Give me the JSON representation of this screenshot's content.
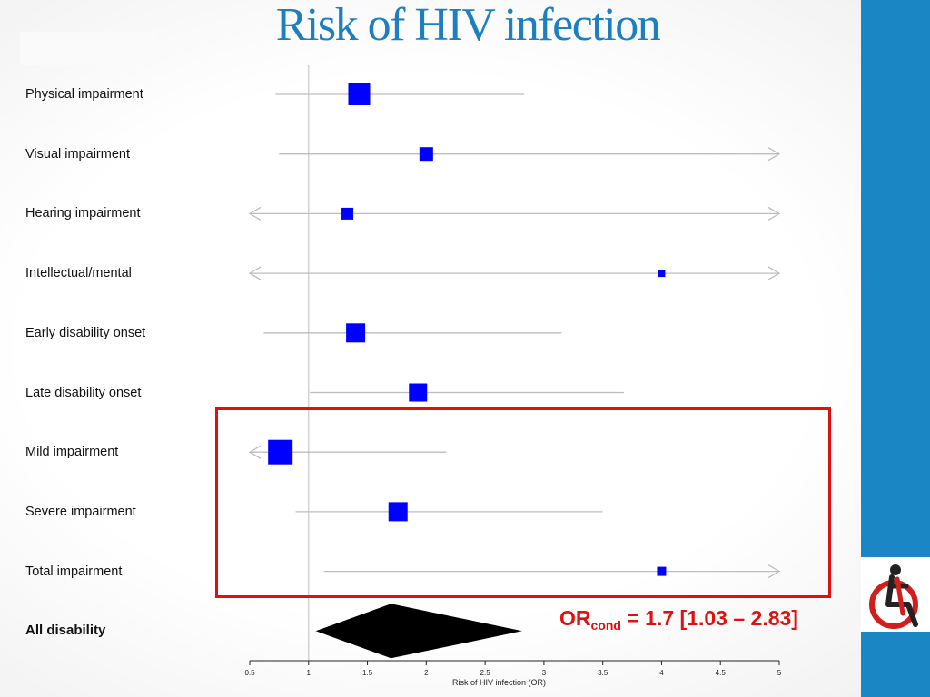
{
  "title": "Risk of HIV infection",
  "annotation": {
    "prefix": "OR",
    "subscript": "cond",
    "text": " = 1.7 [1.03 – 2.83]"
  },
  "logo": {
    "icon": "wheelchair-icon"
  },
  "colors": {
    "title": "#1e7fc0",
    "marker": "#0000ff",
    "highlight": "#e01010",
    "side_band": "#1a86c4",
    "ci_line": "#bdbdbd"
  },
  "chart_data": {
    "type": "forest",
    "title": "Risk of HIV infection",
    "xlabel": "Risk of HIV infection (OR)",
    "xlim": [
      0.5,
      5
    ],
    "x_ticks": [
      "0.5",
      "1",
      "1.5",
      "2",
      "2.5",
      "3",
      "3.5",
      "4",
      "4.5",
      "5"
    ],
    "reference_line": 1,
    "rows": [
      {
        "label": "Physical impairment",
        "or": 1.43,
        "lower": 0.72,
        "upper": 2.83
      },
      {
        "label": "Visual impairment",
        "or": 2.0,
        "lower": 0.75,
        "upper": 5,
        "upper_truncated": true
      },
      {
        "label": "Hearing impairment",
        "or": 1.33,
        "lower": 0.5,
        "upper": 5,
        "lower_truncated": true,
        "upper_truncated": true
      },
      {
        "label": "Intellectual/mental",
        "or": 4.0,
        "lower": 0.5,
        "upper": 5,
        "lower_truncated": true,
        "upper_truncated": true
      },
      {
        "label": "Early disability onset",
        "or": 1.4,
        "lower": 0.62,
        "upper": 3.15
      },
      {
        "label": "Late disability onset",
        "or": 1.93,
        "lower": 1.01,
        "upper": 3.68
      },
      {
        "label": "Mild impairment",
        "or": 0.76,
        "lower": 0.5,
        "upper": 2.17,
        "lower_truncated": true
      },
      {
        "label": "Severe impairment",
        "or": 1.76,
        "lower": 0.89,
        "upper": 3.5
      },
      {
        "label": "Total impairment",
        "or": 4.0,
        "lower": 1.13,
        "upper": 5,
        "upper_truncated": true
      },
      {
        "label": "All disability",
        "or": 1.7,
        "lower": 1.03,
        "upper": 2.83,
        "summary": true
      }
    ],
    "highlighted_rows": [
      "Mild impairment",
      "Severe impairment",
      "Total impairment"
    ]
  }
}
